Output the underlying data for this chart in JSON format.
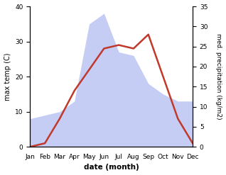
{
  "months": [
    "Jan",
    "Feb",
    "Mar",
    "Apr",
    "May",
    "Jun",
    "Jul",
    "Aug",
    "Sep",
    "Oct",
    "Nov",
    "Dec"
  ],
  "temp_max": [
    0,
    1,
    8,
    16,
    22,
    28,
    29,
    28,
    32,
    20,
    8,
    1
  ],
  "precipitation": [
    8,
    9,
    10,
    13,
    35,
    38,
    27,
    26,
    18,
    15,
    13,
    13
  ],
  "temp_color": "#c0392b",
  "precip_fill_color": "#c5cdf5",
  "temp_ylim": [
    0,
    40
  ],
  "precip_ylim": [
    0,
    35
  ],
  "temp_yticks": [
    0,
    10,
    20,
    30,
    40
  ],
  "precip_yticks": [
    0,
    5,
    10,
    15,
    20,
    25,
    30,
    35
  ],
  "xlabel": "date (month)",
  "ylabel_left": "max temp (C)",
  "ylabel_right": "med. precipitation (kg/m2)",
  "background_color": "#ffffff",
  "label_fontsize": 7,
  "tick_fontsize": 6.5
}
